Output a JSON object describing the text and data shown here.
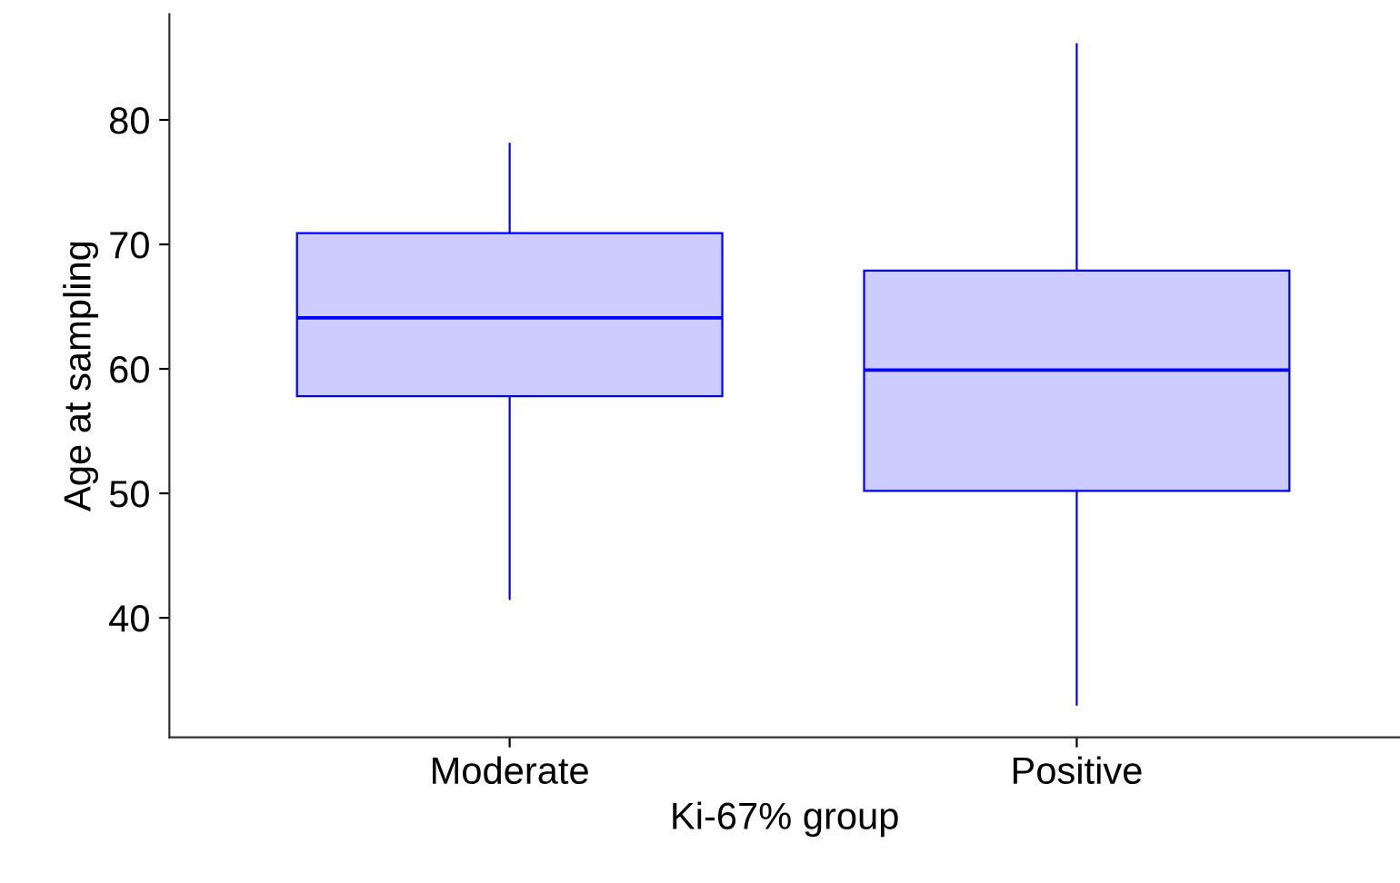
{
  "chart_data": {
    "type": "box",
    "xlabel": "Ki-67% group",
    "ylabel": "Age at sampling",
    "categories": [
      "Moderate",
      "Positive"
    ],
    "boxes": [
      {
        "low": 41.5,
        "q1": 57.8,
        "median": 64.1,
        "q3": 70.9,
        "high": 78.1
      },
      {
        "low": 33.0,
        "q1": 50.2,
        "median": 59.9,
        "q3": 67.9,
        "high": 86.1
      }
    ],
    "color": "#ccccff",
    "ylim": [
      30.4,
      88.5
    ],
    "yticks": [
      40,
      50,
      60,
      70,
      80
    ],
    "grid": false,
    "legend": false
  }
}
